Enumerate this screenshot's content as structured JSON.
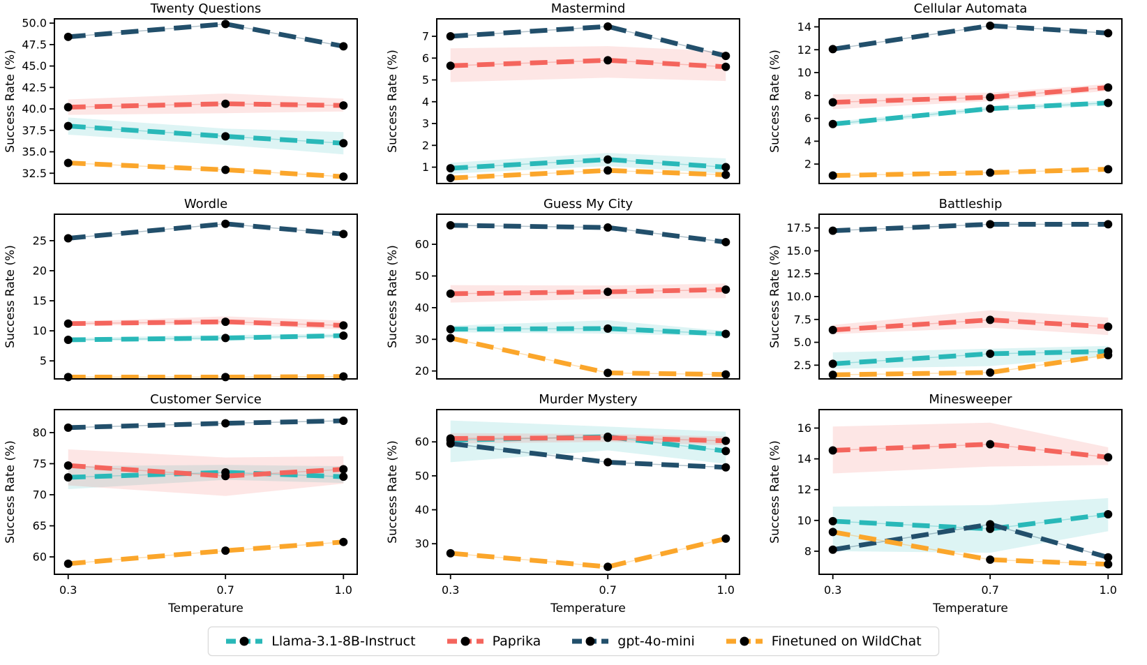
{
  "figure": {
    "background": "#ffffff",
    "marker_color": "#000000"
  },
  "legend": {
    "position": "bottom-center",
    "items": [
      {
        "label": "Llama-3.1-8B-Instruct",
        "color": "#29b8b8"
      },
      {
        "label": "Paprika",
        "color": "#f4655d"
      },
      {
        "label": "gpt-4o-mini",
        "color": "#224f6b"
      },
      {
        "label": "Finetuned on WildChat",
        "color": "#fba62b"
      }
    ]
  },
  "chart_data": [
    {
      "type": "line",
      "title": "Twenty Questions",
      "ylabel": "Success Rate (%)",
      "x": [
        0.3,
        0.7,
        1.0
      ],
      "xlim": [
        0.265,
        1.035
      ],
      "ylim": [
        31.3,
        50.5
      ],
      "ytick_values": [
        32.5,
        35.0,
        37.5,
        40.0,
        42.5,
        45.0,
        47.5,
        50.0
      ],
      "ytick_labels": [
        "32.5",
        "35.0",
        "37.5",
        "40.0",
        "42.5",
        "45.0",
        "47.5",
        "50.0"
      ],
      "show_x_axis": false,
      "grid": false,
      "series": [
        {
          "name": "Llama-3.1-8B-Instruct",
          "color": "#29b8b8",
          "values": [
            38.0,
            36.8,
            36.0
          ],
          "band_lower": [
            37.0,
            35.8,
            34.7
          ],
          "band_upper": [
            39.0,
            37.7,
            37.3
          ]
        },
        {
          "name": "Paprika",
          "color": "#f4655d",
          "values": [
            40.2,
            40.6,
            40.4
          ],
          "band_lower": [
            39.3,
            39.5,
            39.7
          ],
          "band_upper": [
            41.1,
            41.8,
            41.2
          ]
        },
        {
          "name": "gpt-4o-mini",
          "color": "#224f6b",
          "values": [
            48.4,
            49.9,
            47.3
          ],
          "band_lower": null,
          "band_upper": null
        },
        {
          "name": "Finetuned on WildChat",
          "color": "#fba62b",
          "values": [
            33.7,
            32.9,
            32.1
          ],
          "band_lower": null,
          "band_upper": null
        }
      ]
    },
    {
      "type": "line",
      "title": "Mastermind",
      "ylabel": "Success Rate (%)",
      "x": [
        0.3,
        0.7,
        1.0
      ],
      "xlim": [
        0.265,
        1.035
      ],
      "ylim": [
        0.25,
        7.8
      ],
      "ytick_values": [
        1,
        2,
        3,
        4,
        5,
        6,
        7
      ],
      "ytick_labels": [
        "1",
        "2",
        "3",
        "4",
        "5",
        "6",
        "7"
      ],
      "show_x_axis": false,
      "grid": false,
      "series": [
        {
          "name": "Llama-3.1-8B-Instruct",
          "color": "#29b8b8",
          "values": [
            0.95,
            1.35,
            1.0
          ],
          "band_lower": [
            0.7,
            1.05,
            0.7
          ],
          "band_upper": [
            1.2,
            1.65,
            1.4
          ]
        },
        {
          "name": "Paprika",
          "color": "#f4655d",
          "values": [
            5.65,
            5.9,
            5.6
          ],
          "band_lower": [
            4.9,
            5.1,
            4.95
          ],
          "band_upper": [
            6.45,
            6.55,
            6.3
          ]
        },
        {
          "name": "gpt-4o-mini",
          "color": "#224f6b",
          "values": [
            7.0,
            7.45,
            6.1
          ],
          "band_lower": null,
          "band_upper": null
        },
        {
          "name": "Finetuned on WildChat",
          "color": "#fba62b",
          "values": [
            0.5,
            0.85,
            0.65
          ],
          "band_lower": null,
          "band_upper": null
        }
      ]
    },
    {
      "type": "line",
      "title": "Cellular Automata",
      "ylabel": "Success Rate (%)",
      "x": [
        0.3,
        0.7,
        1.0
      ],
      "xlim": [
        0.265,
        1.035
      ],
      "ylim": [
        0.3,
        14.7
      ],
      "ytick_values": [
        2,
        4,
        6,
        8,
        10,
        12,
        14
      ],
      "ytick_labels": [
        "2",
        "4",
        "6",
        "8",
        "10",
        "12",
        "14"
      ],
      "show_x_axis": false,
      "grid": false,
      "series": [
        {
          "name": "Llama-3.1-8B-Instruct",
          "color": "#29b8b8",
          "values": [
            5.5,
            6.85,
            7.35
          ],
          "band_lower": [
            5.3,
            6.65,
            7.15
          ],
          "band_upper": [
            5.7,
            7.05,
            7.55
          ]
        },
        {
          "name": "Paprika",
          "color": "#f4655d",
          "values": [
            7.4,
            7.85,
            8.7
          ],
          "band_lower": [
            6.8,
            7.5,
            8.4
          ],
          "band_upper": [
            8.1,
            8.25,
            9.0
          ]
        },
        {
          "name": "gpt-4o-mini",
          "color": "#224f6b",
          "values": [
            12.05,
            14.1,
            13.45
          ],
          "band_lower": null,
          "band_upper": null
        },
        {
          "name": "Finetuned on WildChat",
          "color": "#fba62b",
          "values": [
            1.0,
            1.25,
            1.55
          ],
          "band_lower": null,
          "band_upper": null
        }
      ]
    },
    {
      "type": "line",
      "title": "Wordle",
      "ylabel": "Success Rate (%)",
      "x": [
        0.3,
        0.7,
        1.0
      ],
      "xlim": [
        0.265,
        1.035
      ],
      "ylim": [
        2.0,
        29.4
      ],
      "ytick_values": [
        5,
        10,
        15,
        20,
        25
      ],
      "ytick_labels": [
        "5",
        "10",
        "15",
        "20",
        "25"
      ],
      "show_x_axis": false,
      "grid": false,
      "series": [
        {
          "name": "Llama-3.1-8B-Instruct",
          "color": "#29b8b8",
          "values": [
            8.5,
            8.8,
            9.2
          ],
          "band_lower": [
            8.3,
            8.5,
            8.9
          ],
          "band_upper": [
            8.8,
            9.3,
            9.5
          ]
        },
        {
          "name": "Paprika",
          "color": "#f4655d",
          "values": [
            11.2,
            11.5,
            10.9
          ],
          "band_lower": [
            10.9,
            11.1,
            10.2
          ],
          "band_upper": [
            11.5,
            12.4,
            11.7
          ]
        },
        {
          "name": "gpt-4o-mini",
          "color": "#224f6b",
          "values": [
            25.4,
            27.8,
            26.1
          ],
          "band_lower": null,
          "band_upper": null
        },
        {
          "name": "Finetuned on WildChat",
          "color": "#fba62b",
          "values": [
            2.3,
            2.3,
            2.4
          ],
          "band_lower": null,
          "band_upper": null
        }
      ]
    },
    {
      "type": "line",
      "title": "Guess My City",
      "ylabel": "Success Rate (%)",
      "x": [
        0.3,
        0.7,
        1.0
      ],
      "xlim": [
        0.265,
        1.035
      ],
      "ylim": [
        17.5,
        69.5
      ],
      "ytick_values": [
        20,
        30,
        40,
        50,
        60
      ],
      "ytick_labels": [
        "20",
        "30",
        "40",
        "50",
        "60"
      ],
      "show_x_axis": false,
      "grid": false,
      "series": [
        {
          "name": "Llama-3.1-8B-Instruct",
          "color": "#29b8b8",
          "values": [
            33.2,
            33.4,
            31.7
          ],
          "band_lower": [
            32.2,
            31.8,
            31.0
          ],
          "band_upper": [
            34.3,
            36.0,
            32.6
          ]
        },
        {
          "name": "Paprika",
          "color": "#f4655d",
          "values": [
            44.4,
            45.0,
            45.7
          ],
          "band_lower": [
            41.6,
            42.8,
            43.0
          ],
          "band_upper": [
            47.1,
            47.0,
            47.6
          ]
        },
        {
          "name": "gpt-4o-mini",
          "color": "#224f6b",
          "values": [
            66.0,
            65.3,
            60.7
          ],
          "band_lower": null,
          "band_upper": null
        },
        {
          "name": "Finetuned on WildChat",
          "color": "#fba62b",
          "values": [
            30.4,
            19.4,
            18.9
          ],
          "band_lower": null,
          "band_upper": null
        }
      ]
    },
    {
      "type": "line",
      "title": "Battleship",
      "ylabel": "Success Rate (%)",
      "x": [
        0.3,
        0.7,
        1.0
      ],
      "xlim": [
        0.265,
        1.035
      ],
      "ylim": [
        1.0,
        19.0
      ],
      "ytick_values": [
        2.5,
        5.0,
        7.5,
        10.0,
        12.5,
        15.0,
        17.5
      ],
      "ytick_labels": [
        "2.5",
        "5.0",
        "7.5",
        "10.0",
        "12.5",
        "15.0",
        "17.5"
      ],
      "show_x_axis": false,
      "grid": false,
      "series": [
        {
          "name": "Llama-3.1-8B-Instruct",
          "color": "#29b8b8",
          "values": [
            2.65,
            3.75,
            4.0
          ],
          "band_lower": [
            2.1,
            2.4,
            3.5
          ],
          "band_upper": [
            3.9,
            4.3,
            4.6
          ]
        },
        {
          "name": "Paprika",
          "color": "#f4655d",
          "values": [
            6.35,
            7.45,
            6.7
          ],
          "band_lower": [
            5.9,
            6.6,
            5.8
          ],
          "band_upper": [
            6.9,
            8.5,
            7.7
          ]
        },
        {
          "name": "gpt-4o-mini",
          "color": "#224f6b",
          "values": [
            17.2,
            17.9,
            17.9
          ],
          "band_lower": null,
          "band_upper": null
        },
        {
          "name": "Finetuned on WildChat",
          "color": "#fba62b",
          "values": [
            1.45,
            1.7,
            3.6
          ],
          "band_lower": null,
          "band_upper": null
        }
      ]
    },
    {
      "type": "line",
      "title": "Customer Service",
      "ylabel": "Success Rate (%)",
      "xlabel": "Temperature",
      "x": [
        0.3,
        0.7,
        1.0
      ],
      "xlim": [
        0.265,
        1.035
      ],
      "ylim": [
        57.2,
        83.7
      ],
      "ytick_values": [
        60,
        65,
        70,
        75,
        80
      ],
      "ytick_labels": [
        "60",
        "65",
        "70",
        "75",
        "80"
      ],
      "xtick_values": [
        0.3,
        0.7,
        1.0
      ],
      "xtick_labels": [
        "0.3",
        "0.7",
        "1.0"
      ],
      "show_x_axis": true,
      "grid": false,
      "series": [
        {
          "name": "Llama-3.1-8B-Instruct",
          "color": "#29b8b8",
          "values": [
            72.8,
            73.6,
            72.9
          ],
          "band_lower": [
            70.9,
            72.4,
            71.9
          ],
          "band_upper": [
            74.6,
            74.8,
            74.6
          ]
        },
        {
          "name": "Paprika",
          "color": "#f4655d",
          "values": [
            74.7,
            73.0,
            74.1
          ],
          "band_lower": [
            71.5,
            69.8,
            71.8
          ],
          "band_upper": [
            77.3,
            76.0,
            76.2
          ]
        },
        {
          "name": "gpt-4o-mini",
          "color": "#224f6b",
          "values": [
            80.8,
            81.5,
            81.9
          ],
          "band_lower": null,
          "band_upper": null
        },
        {
          "name": "Finetuned on WildChat",
          "color": "#fba62b",
          "values": [
            58.9,
            61.0,
            62.4
          ],
          "band_lower": null,
          "band_upper": null
        }
      ]
    },
    {
      "type": "line",
      "title": "Murder Mystery",
      "ylabel": "Success Rate (%)",
      "xlabel": "Temperature",
      "x": [
        0.3,
        0.7,
        1.0
      ],
      "xlim": [
        0.265,
        1.035
      ],
      "ylim": [
        21.0,
        69.5
      ],
      "ytick_values": [
        30,
        40,
        50,
        60
      ],
      "ytick_labels": [
        "30",
        "40",
        "50",
        "60"
      ],
      "xtick_values": [
        0.3,
        0.7,
        1.0
      ],
      "xtick_labels": [
        "0.3",
        "0.7",
        "1.0"
      ],
      "show_x_axis": true,
      "grid": false,
      "series": [
        {
          "name": "Llama-3.1-8B-Instruct",
          "color": "#29b8b8",
          "values": [
            60.5,
            61.5,
            57.3
          ],
          "band_lower": [
            54.0,
            57.5,
            53.5
          ],
          "band_upper": [
            66.3,
            64.5,
            63.0
          ]
        },
        {
          "name": "Paprika",
          "color": "#f4655d",
          "values": [
            61.0,
            61.2,
            60.3
          ],
          "band_lower": [
            59.5,
            60.0,
            59.0
          ],
          "band_upper": [
            62.6,
            62.3,
            61.6
          ]
        },
        {
          "name": "gpt-4o-mini",
          "color": "#224f6b",
          "values": [
            59.5,
            54.0,
            52.5
          ],
          "band_lower": null,
          "band_upper": null
        },
        {
          "name": "Finetuned on WildChat",
          "color": "#fba62b",
          "values": [
            27.2,
            23.2,
            31.5
          ],
          "band_lower": null,
          "band_upper": null
        }
      ]
    },
    {
      "type": "line",
      "title": "Minesweeper",
      "ylabel": "Success Rate (%)",
      "xlabel": "Temperature",
      "x": [
        0.3,
        0.7,
        1.0
      ],
      "xlim": [
        0.265,
        1.035
      ],
      "ylim": [
        6.5,
        17.2
      ],
      "ytick_values": [
        8,
        10,
        12,
        14,
        16
      ],
      "ytick_labels": [
        "8",
        "10",
        "12",
        "14",
        "16"
      ],
      "xtick_values": [
        0.3,
        0.7,
        1.0
      ],
      "xtick_labels": [
        "0.3",
        "0.7",
        "1.0"
      ],
      "show_x_axis": true,
      "grid": false,
      "series": [
        {
          "name": "Llama-3.1-8B-Instruct",
          "color": "#29b8b8",
          "values": [
            9.95,
            9.45,
            10.4
          ],
          "band_lower": [
            8.0,
            7.9,
            9.3
          ],
          "band_upper": [
            10.9,
            11.0,
            11.45
          ]
        },
        {
          "name": "Paprika",
          "color": "#f4655d",
          "values": [
            14.55,
            14.95,
            14.1
          ],
          "band_lower": [
            13.05,
            13.5,
            13.6
          ],
          "band_upper": [
            16.1,
            16.35,
            14.75
          ]
        },
        {
          "name": "gpt-4o-mini",
          "color": "#224f6b",
          "values": [
            8.1,
            9.75,
            7.6
          ],
          "band_lower": null,
          "band_upper": null
        },
        {
          "name": "Finetuned on WildChat",
          "color": "#fba62b",
          "values": [
            9.25,
            7.45,
            7.15
          ],
          "band_lower": null,
          "band_upper": null
        }
      ]
    }
  ]
}
